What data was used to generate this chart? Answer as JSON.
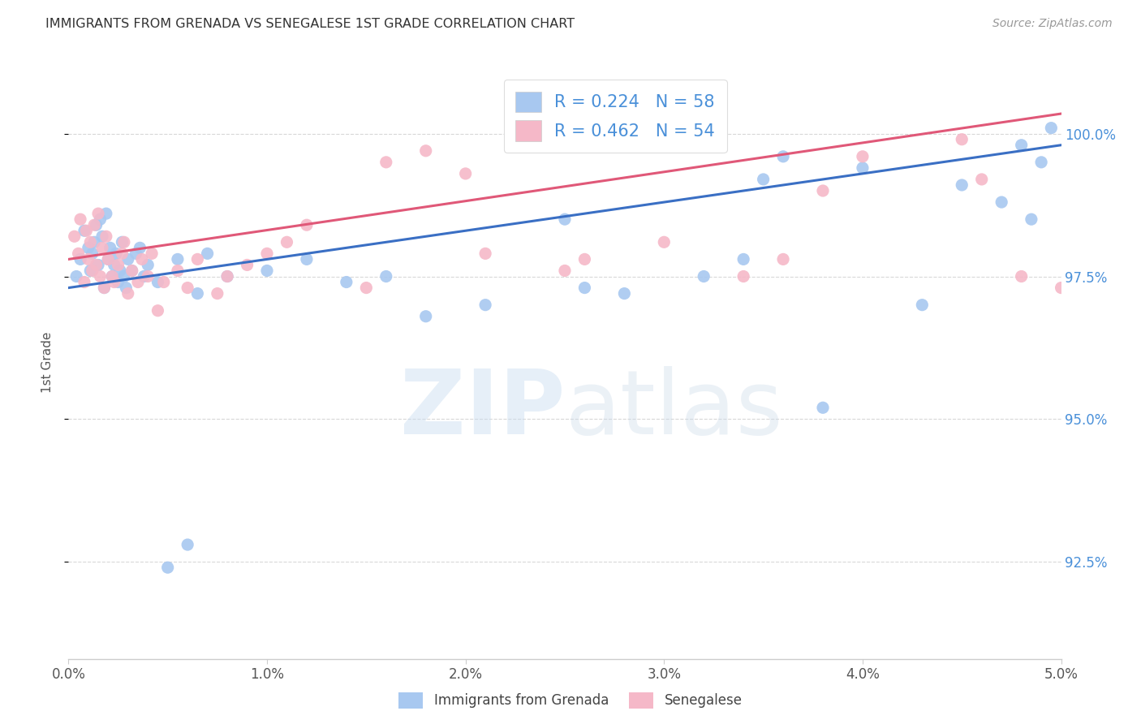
{
  "title": "IMMIGRANTS FROM GRENADA VS SENEGALESE 1ST GRADE CORRELATION CHART",
  "source": "Source: ZipAtlas.com",
  "ylabel": "1st Grade",
  "ylabel_ticks": [
    "92.5%",
    "95.0%",
    "97.5%",
    "100.0%"
  ],
  "ylabel_values": [
    92.5,
    95.0,
    97.5,
    100.0
  ],
  "xlim": [
    0.0,
    5.0
  ],
  "ylim": [
    90.8,
    101.2
  ],
  "xticks": [
    0.0,
    1.0,
    2.0,
    3.0,
    4.0,
    5.0
  ],
  "xticklabels": [
    "0.0%",
    "1.0%",
    "2.0%",
    "3.0%",
    "4.0%",
    "5.0%"
  ],
  "legend1_label": "R = 0.224   N = 58",
  "legend2_label": "R = 0.462   N = 54",
  "watermark_zip": "ZIP",
  "watermark_atlas": "atlas",
  "blue_scatter_x": [
    0.04,
    0.06,
    0.08,
    0.1,
    0.11,
    0.12,
    0.13,
    0.14,
    0.15,
    0.16,
    0.17,
    0.18,
    0.19,
    0.2,
    0.21,
    0.22,
    0.23,
    0.24,
    0.25,
    0.26,
    0.27,
    0.28,
    0.29,
    0.3,
    0.32,
    0.34,
    0.36,
    0.38,
    0.4,
    0.45,
    0.5,
    0.55,
    0.6,
    0.65,
    0.7,
    0.8,
    1.0,
    1.2,
    1.4,
    1.6,
    1.8,
    2.1,
    2.5,
    2.6,
    2.8,
    3.2,
    3.4,
    3.5,
    3.6,
    3.8,
    4.0,
    4.3,
    4.5,
    4.7,
    4.8,
    4.85,
    4.9,
    4.95
  ],
  "blue_scatter_y": [
    97.5,
    97.8,
    98.3,
    98.0,
    97.6,
    97.9,
    98.1,
    98.4,
    97.7,
    98.5,
    98.2,
    97.3,
    98.6,
    97.8,
    98.0,
    97.5,
    97.7,
    97.9,
    97.4,
    97.6,
    98.1,
    97.5,
    97.3,
    97.8,
    97.6,
    97.9,
    98.0,
    97.5,
    97.7,
    97.4,
    92.4,
    97.8,
    92.8,
    97.2,
    97.9,
    97.5,
    97.6,
    97.8,
    97.4,
    97.5,
    96.8,
    97.0,
    98.5,
    97.3,
    97.2,
    97.5,
    97.8,
    99.2,
    99.6,
    95.2,
    99.4,
    97.0,
    99.1,
    98.8,
    99.8,
    98.5,
    99.5,
    100.1
  ],
  "pink_scatter_x": [
    0.03,
    0.05,
    0.06,
    0.08,
    0.09,
    0.1,
    0.11,
    0.12,
    0.13,
    0.14,
    0.15,
    0.16,
    0.17,
    0.18,
    0.19,
    0.2,
    0.22,
    0.23,
    0.25,
    0.27,
    0.28,
    0.3,
    0.32,
    0.35,
    0.37,
    0.4,
    0.42,
    0.45,
    0.48,
    0.55,
    0.6,
    0.65,
    0.75,
    0.8,
    0.9,
    1.0,
    1.1,
    1.2,
    1.5,
    1.6,
    1.8,
    2.0,
    2.1,
    2.5,
    2.6,
    3.0,
    3.4,
    3.6,
    3.8,
    4.0,
    4.5,
    4.6,
    4.8,
    5.0
  ],
  "pink_scatter_y": [
    98.2,
    97.9,
    98.5,
    97.4,
    98.3,
    97.8,
    98.1,
    97.6,
    98.4,
    97.7,
    98.6,
    97.5,
    98.0,
    97.3,
    98.2,
    97.8,
    97.5,
    97.4,
    97.7,
    97.9,
    98.1,
    97.2,
    97.6,
    97.4,
    97.8,
    97.5,
    97.9,
    96.9,
    97.4,
    97.6,
    97.3,
    97.8,
    97.2,
    97.5,
    97.7,
    97.9,
    98.1,
    98.4,
    97.3,
    99.5,
    99.7,
    99.3,
    97.9,
    97.6,
    97.8,
    98.1,
    97.5,
    97.8,
    99.0,
    99.6,
    99.9,
    99.2,
    97.5,
    97.3
  ],
  "blue_line_y0": 97.3,
  "blue_line_y1": 99.8,
  "pink_line_y0": 97.8,
  "pink_line_y1": 100.35,
  "blue_color": "#a8c8f0",
  "pink_color": "#f5b8c8",
  "blue_line_color": "#3a6fc4",
  "pink_line_color": "#e05878",
  "legend_text_color": "#4a90d9",
  "grid_color": "#d8d8d8",
  "background_color": "#ffffff",
  "title_color": "#333333",
  "source_color": "#999999",
  "ylabel_color": "#555555",
  "xtick_color": "#555555"
}
